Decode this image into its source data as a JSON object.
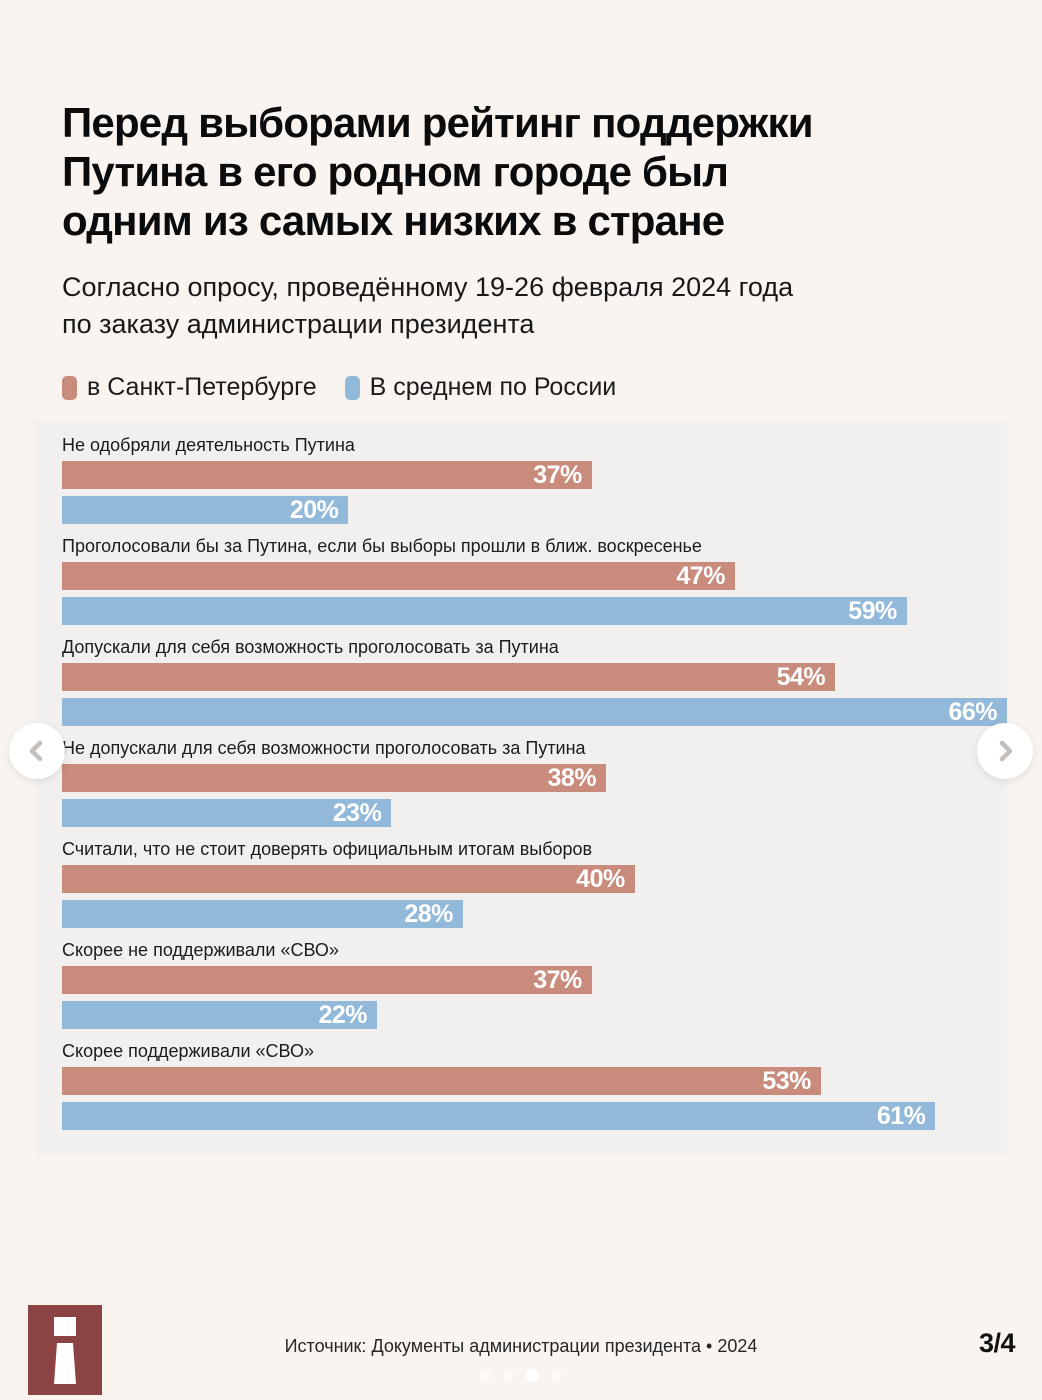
{
  "page": {
    "title": "Перед выборами рейтинг поддержки\nПутина в его родном городе был\nодним из самых низких в стране",
    "subtitle": "Согласно опросу, проведённому 19-26 февраля 2024 года\nпо заказу администрации президента",
    "source": "Источник: Документы администрации президента • 2024",
    "page_indicator": "3/4"
  },
  "colors": {
    "spb": "#c98b7c",
    "russia": "#92b9da",
    "background": "#faf4f0",
    "panel": "#f2f0ee",
    "logo": "#8b4343",
    "chevron": "#c3bfbc"
  },
  "legend": [
    {
      "label": "в Санкт-Петербурге",
      "color_key": "spb"
    },
    {
      "label": "В среднем по России",
      "color_key": "russia"
    }
  ],
  "chart_data": {
    "type": "bar",
    "orientation": "horizontal",
    "unit": "%",
    "axis_max": 66,
    "grid": false,
    "legend_position": "top",
    "value_labels": "inside-end",
    "categories": [
      "Не одобряли деятельность Путина",
      "Проголосовали бы за Путина, если бы выборы прошли в ближ. воскресенье",
      "Допускали для себя возможность проголосовать за Путина",
      "Не допускали для себя возможности проголосовать за Путина",
      "Считали, что не стоит доверять официальным итогам выборов",
      "Скорее не поддерживали «СВО»",
      "Скорее поддерживали «СВО»"
    ],
    "series": [
      {
        "name": "в Санкт-Петербурге",
        "color": "#c98b7c",
        "values": [
          37,
          47,
          54,
          38,
          40,
          37,
          53
        ]
      },
      {
        "name": "В среднем по России",
        "color": "#92b9da",
        "values": [
          20,
          59,
          66,
          23,
          28,
          22,
          61
        ]
      }
    ]
  },
  "carousel": {
    "dots": 4,
    "active_dot": 3
  }
}
